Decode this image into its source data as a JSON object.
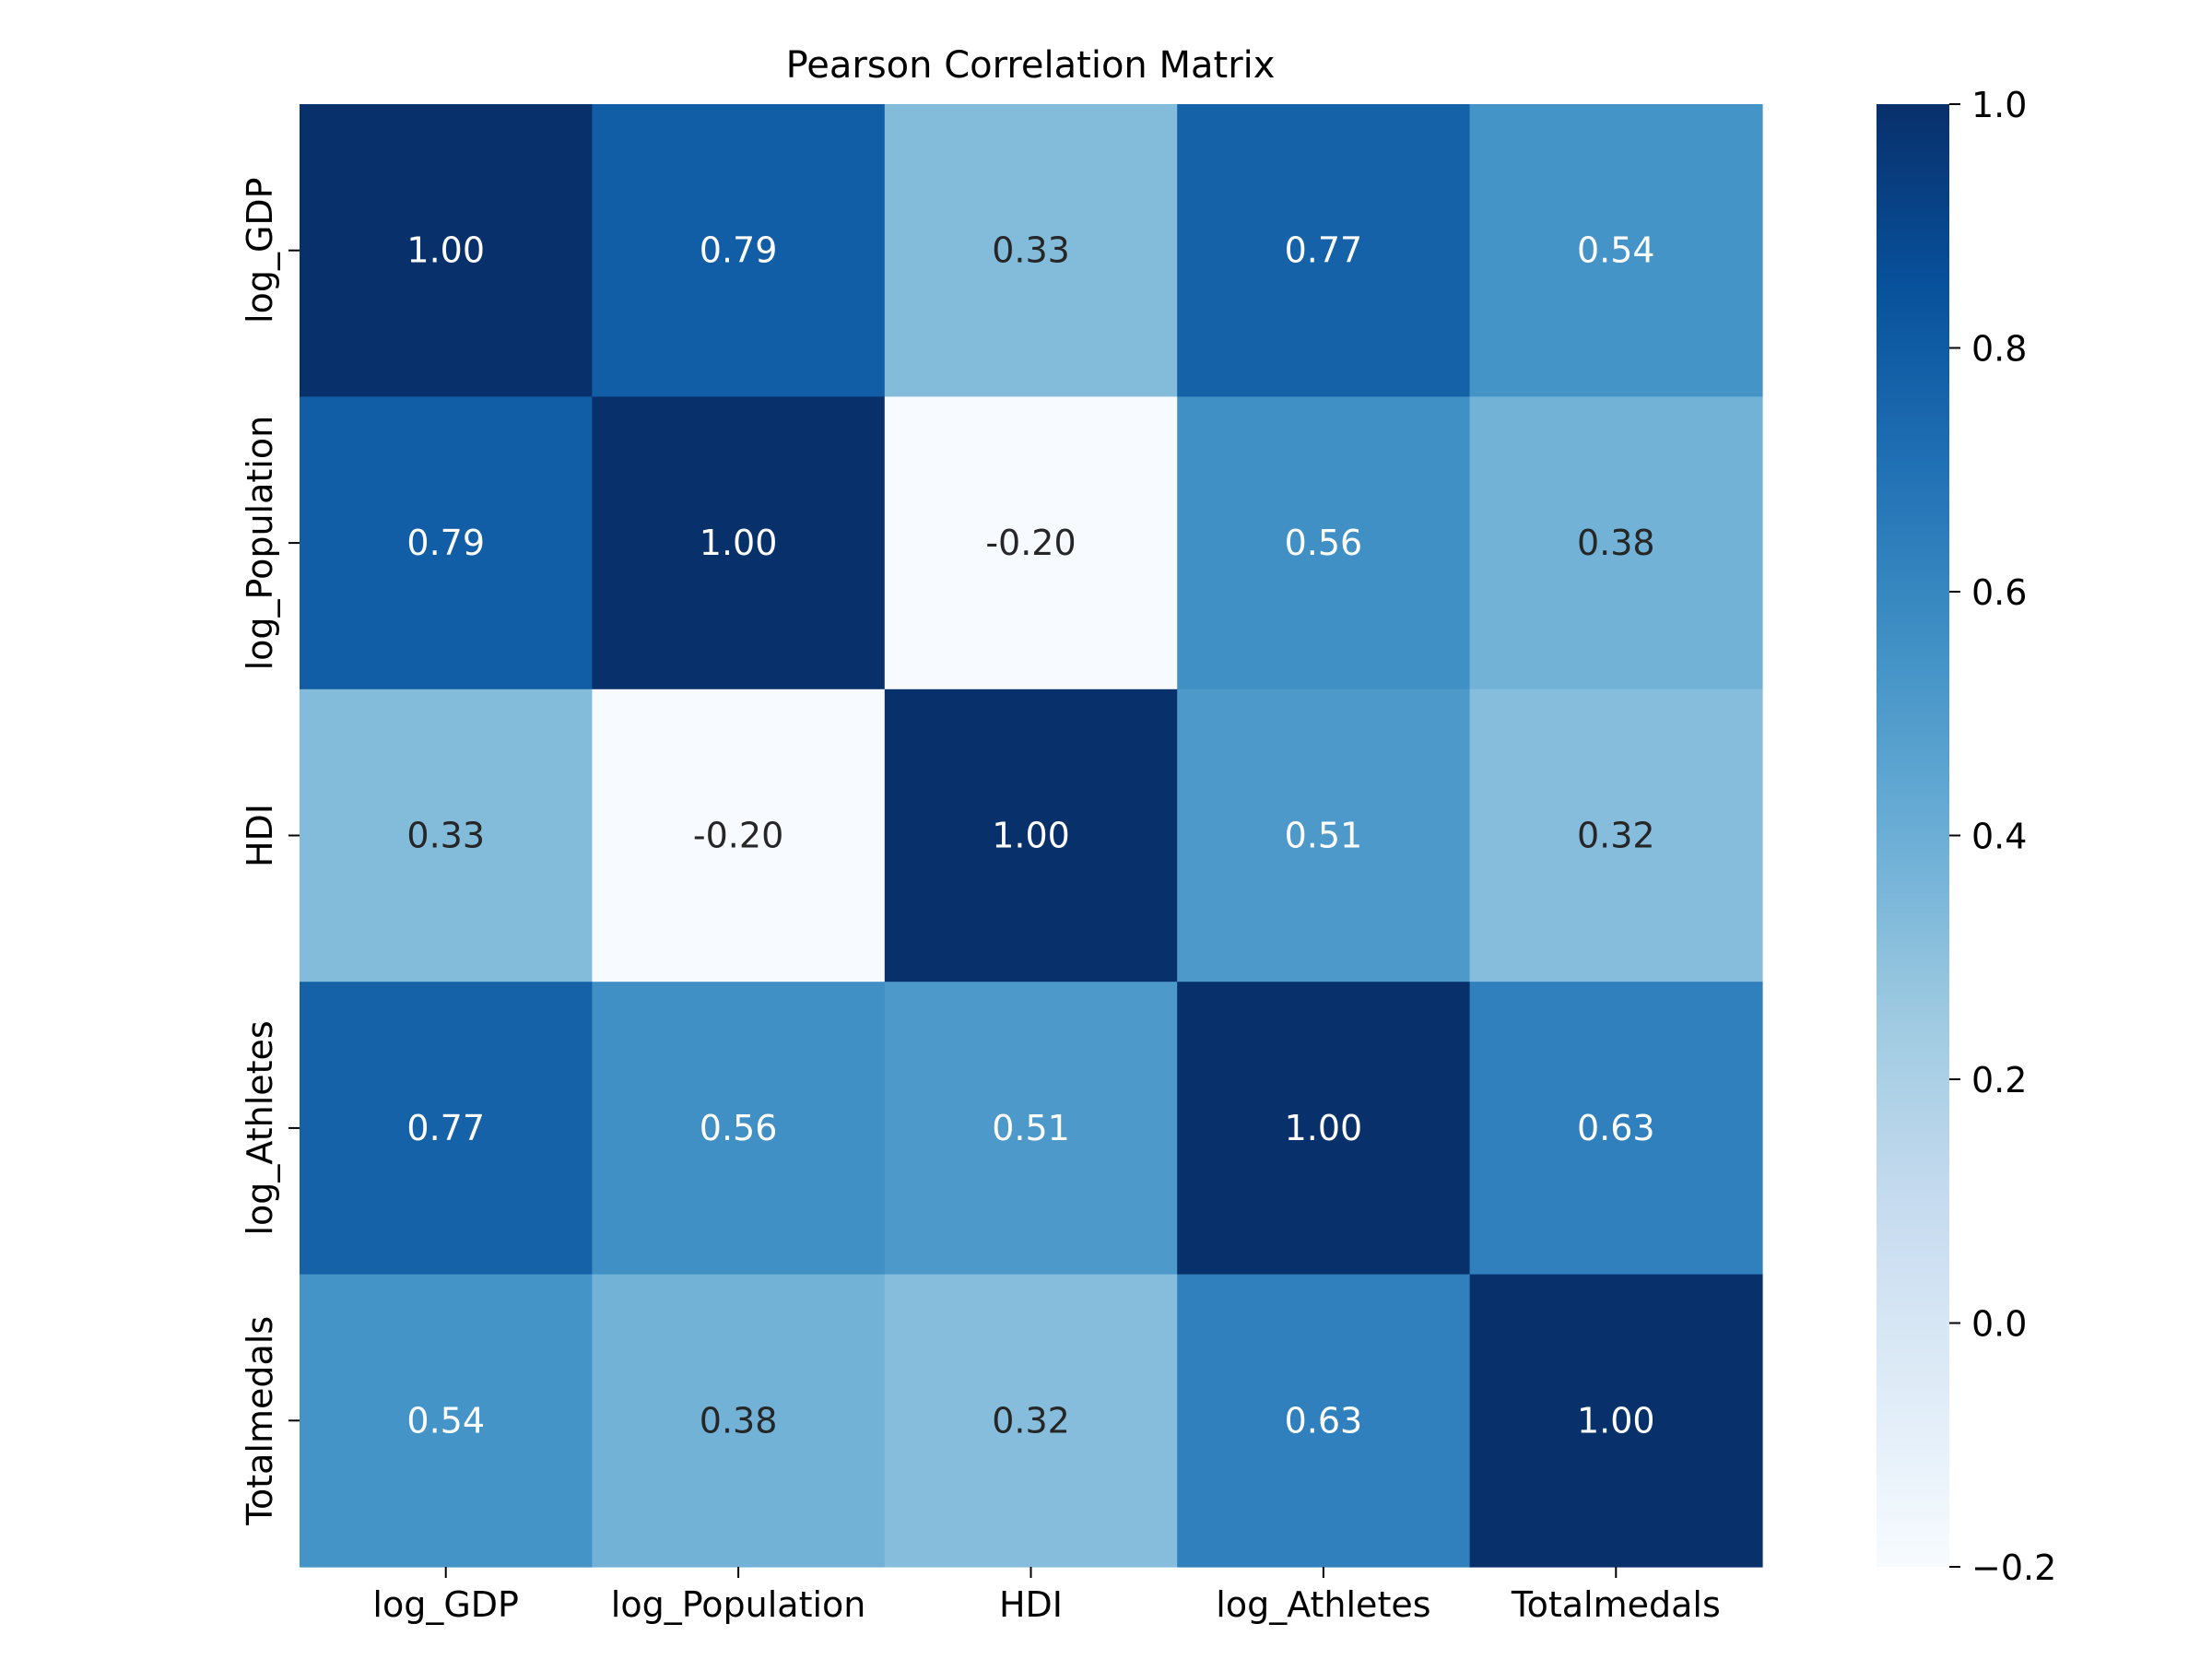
{
  "chart_data": {
    "type": "heatmap",
    "title": "Pearson Correlation Matrix",
    "x_labels": [
      "log_GDP",
      "log_Population",
      "HDI",
      "log_Athletes",
      "Totalmedals"
    ],
    "y_labels": [
      "log_GDP",
      "log_Population",
      "HDI",
      "log_Athletes",
      "Totalmedals"
    ],
    "values": [
      [
        1.0,
        0.79,
        0.33,
        0.77,
        0.54
      ],
      [
        0.79,
        1.0,
        -0.2,
        0.56,
        0.38
      ],
      [
        0.33,
        -0.2,
        1.0,
        0.51,
        0.32
      ],
      [
        0.77,
        0.56,
        0.51,
        1.0,
        0.63
      ],
      [
        0.54,
        0.38,
        0.32,
        0.63,
        1.0
      ]
    ],
    "value_format": "2 decimals",
    "colormap": "Blues",
    "colormap_stops": [
      "#f7fbff",
      "#deebf7",
      "#c6dbef",
      "#9ecae1",
      "#6baed6",
      "#4292c6",
      "#2171b5",
      "#08519c",
      "#08306b"
    ],
    "vmin": -0.2,
    "vmax": 1.0,
    "colorbar": {
      "ticks": [
        1.0,
        0.8,
        0.6,
        0.4,
        0.2,
        0.0,
        -0.2
      ],
      "tick_labels": [
        "1.0",
        "0.8",
        "0.6",
        "0.4",
        "0.2",
        "0.0",
        "−0.2"
      ]
    },
    "text_colors": {
      "light": "#ffffff",
      "dark": "#262626"
    }
  }
}
